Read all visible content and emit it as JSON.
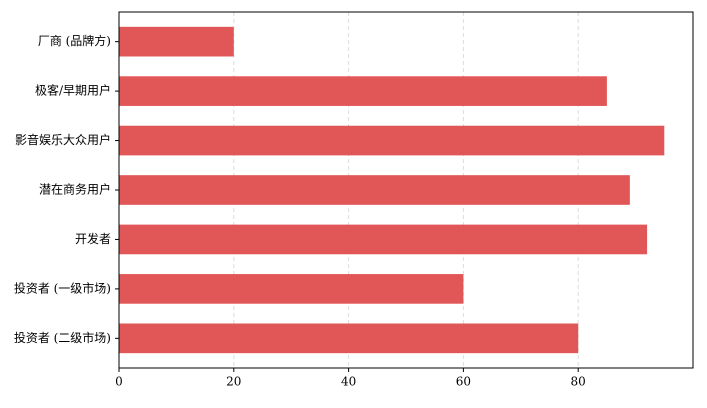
{
  "chart_data": {
    "type": "barh",
    "categories": [
      "厂商 (品牌方)",
      "极客/早期用户",
      "影音娱乐大众用户",
      "潜在商务用户",
      "开发者",
      "投资者 (一级市场)",
      "投资者 (二级市场)"
    ],
    "values": [
      20,
      85,
      95,
      89,
      92,
      60,
      80
    ],
    "color": "#e05252",
    "xlim": [
      0,
      100
    ],
    "xticks": [
      0,
      20,
      40,
      60,
      80
    ],
    "grid": true
  }
}
